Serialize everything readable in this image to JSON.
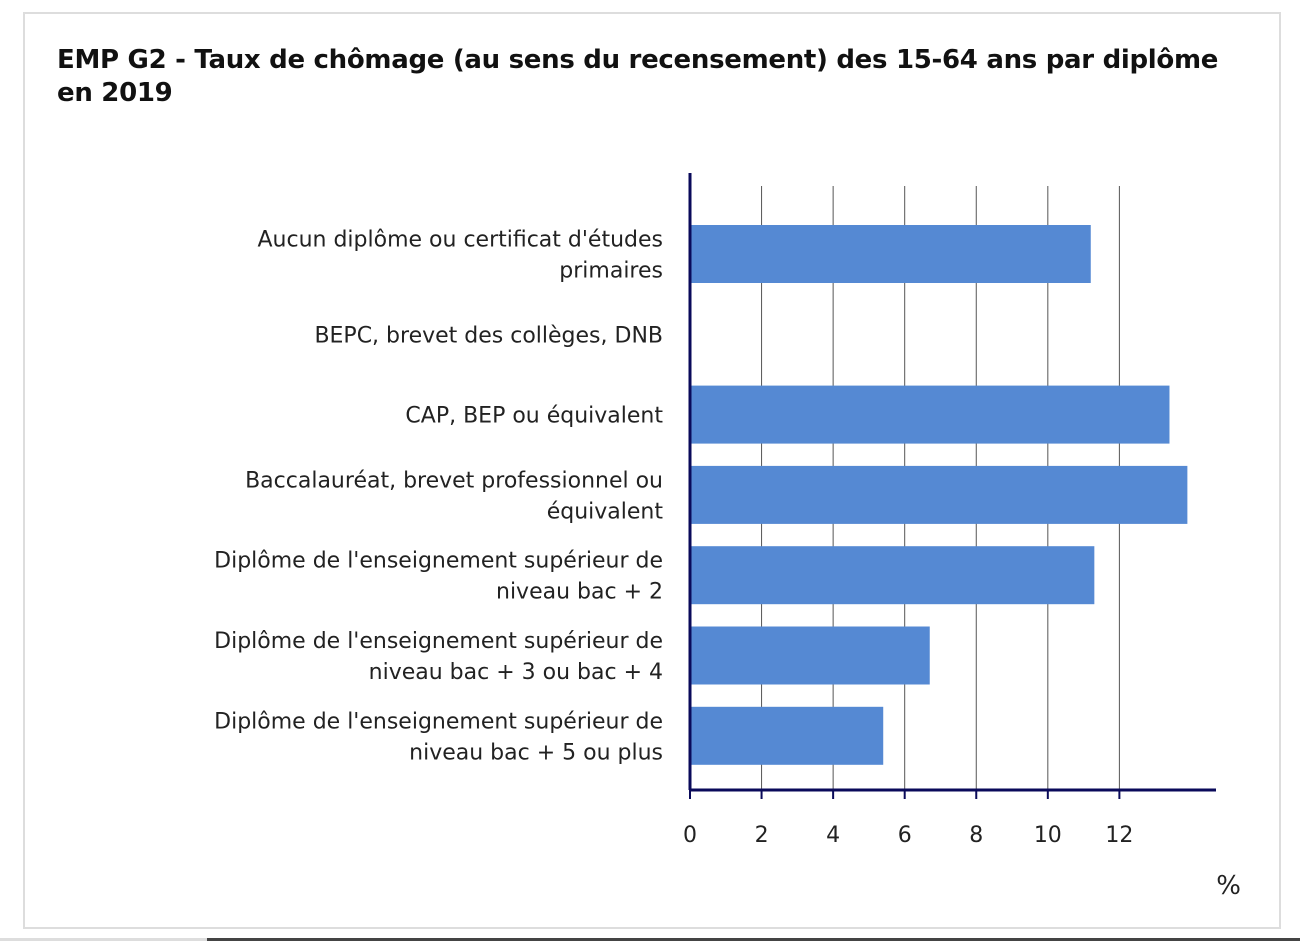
{
  "chart_data": {
    "type": "bar",
    "orientation": "horizontal",
    "title": "EMP G2 - Taux de chômage (au sens du recensement) des 15-64 ans par diplôme en 2019",
    "xlabel": "%",
    "ylabel": "",
    "categories": [
      [
        "Aucun diplôme ou certificat d'études",
        "primaires"
      ],
      [
        "BEPC, brevet des collèges, DNB"
      ],
      [
        "CAP, BEP ou équivalent"
      ],
      [
        "Baccalauréat, brevet professionnel ou",
        "équivalent"
      ],
      [
        "Diplôme de l'enseignement supérieur de",
        "niveau bac + 2"
      ],
      [
        "Diplôme de l'enseignement supérieur de",
        "niveau bac + 3 ou bac + 4"
      ],
      [
        "Diplôme de l'enseignement supérieur de",
        "niveau bac + 5 ou plus"
      ]
    ],
    "values": [
      11.2,
      null,
      13.4,
      13.9,
      11.3,
      6.7,
      5.4
    ],
    "xticks": [
      0,
      2,
      4,
      6,
      8,
      10,
      12
    ],
    "xlim": [
      0,
      14.7
    ],
    "grid": "vertical",
    "legend": "none",
    "bar_color": "#5589d3",
    "axis_color": "#0a0a5a",
    "grid_color": "#555555"
  }
}
